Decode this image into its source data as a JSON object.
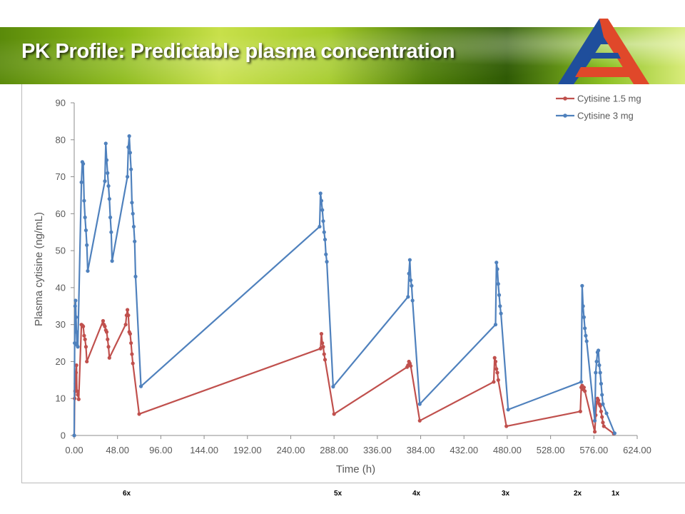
{
  "slide": {
    "title": "PK Profile: Predictable plasma concentration"
  },
  "logo": {
    "icon": "triangle-a-logo-icon",
    "colors": [
      "#1f4e9c",
      "#e0482a"
    ]
  },
  "dose_labels": [
    "6x",
    "5x",
    "4x",
    "3x",
    "2x",
    "1x"
  ],
  "chart_data": {
    "type": "line",
    "xlabel": "Time (h)",
    "ylabel": "Plasma cytisine (ng/mL)",
    "xlim": [
      0,
      624
    ],
    "ylim": [
      0,
      90
    ],
    "xticks": [
      0,
      48,
      96,
      144,
      192,
      240,
      288,
      336,
      384,
      432,
      480,
      528,
      576,
      624
    ],
    "xtick_labels": [
      "0.00",
      "48.00",
      "96.00",
      "144.00",
      "192.00",
      "240.00",
      "288.00",
      "336.00",
      "384.00",
      "432.00",
      "480.00",
      "528.00",
      "576.00",
      "624.00"
    ],
    "yticks": [
      0,
      10,
      20,
      30,
      40,
      50,
      60,
      70,
      80,
      90
    ],
    "grid": false,
    "legend_position": "top-right",
    "series": [
      {
        "name": "Cytisine 1.5 mg",
        "color": "#c0504d",
        "points": [
          [
            0,
            0
          ],
          [
            0.5,
            10
          ],
          [
            1,
            12
          ],
          [
            1.5,
            14
          ],
          [
            2,
            17
          ],
          [
            2.5,
            19
          ],
          [
            3,
            12
          ],
          [
            4,
            11
          ],
          [
            5,
            9.8
          ],
          [
            8,
            30
          ],
          [
            9,
            29.8
          ],
          [
            10,
            29.5
          ],
          [
            11,
            27
          ],
          [
            12,
            26
          ],
          [
            13,
            24
          ],
          [
            14,
            20
          ],
          [
            32,
            31
          ],
          [
            33,
            30
          ],
          [
            34,
            29.5
          ],
          [
            35,
            28.5
          ],
          [
            36,
            28
          ],
          [
            37,
            26
          ],
          [
            38,
            24
          ],
          [
            39,
            21
          ],
          [
            57,
            30
          ],
          [
            58,
            32.5
          ],
          [
            59,
            34
          ],
          [
            60,
            32.5
          ],
          [
            61,
            28
          ],
          [
            62,
            27.5
          ],
          [
            63,
            25
          ],
          [
            64,
            22
          ],
          [
            65,
            19.5
          ],
          [
            72,
            5.8
          ],
          [
            273,
            23.5
          ],
          [
            274,
            27.5
          ],
          [
            275,
            25
          ],
          [
            276,
            24
          ],
          [
            277,
            22
          ],
          [
            278,
            20.5
          ],
          [
            288,
            5.8
          ],
          [
            369,
            18.5
          ],
          [
            370,
            19
          ],
          [
            371,
            20
          ],
          [
            372,
            19.5
          ],
          [
            373,
            18.8
          ],
          [
            383,
            4
          ],
          [
            465,
            14.5
          ],
          [
            466,
            21
          ],
          [
            467,
            20
          ],
          [
            468,
            18
          ],
          [
            469,
            17
          ],
          [
            470,
            15
          ],
          [
            479,
            2.5
          ],
          [
            561,
            6.5
          ],
          [
            562,
            13
          ],
          [
            563,
            13.5
          ],
          [
            564,
            12.5
          ],
          [
            565,
            13
          ],
          [
            566,
            12
          ],
          [
            577,
            1
          ],
          [
            578,
            5.5
          ],
          [
            579,
            9
          ],
          [
            580,
            10
          ],
          [
            581,
            9.5
          ],
          [
            582,
            8.5
          ],
          [
            583,
            8
          ],
          [
            584,
            6.5
          ],
          [
            585,
            5
          ],
          [
            586,
            3.5
          ],
          [
            587,
            2.5
          ],
          [
            598,
            0.5
          ]
        ]
      },
      {
        "name": "Cytisine 3 mg",
        "color": "#4f81bd",
        "points": [
          [
            0,
            0
          ],
          [
            0.5,
            25
          ],
          [
            1,
            35
          ],
          [
            1.5,
            36.5
          ],
          [
            2,
            32
          ],
          [
            2.5,
            28
          ],
          [
            3,
            24.5
          ],
          [
            4,
            24
          ],
          [
            8,
            68.5
          ],
          [
            9,
            74
          ],
          [
            10,
            73.5
          ],
          [
            11,
            63.5
          ],
          [
            12,
            59
          ],
          [
            13,
            55.5
          ],
          [
            14,
            51.5
          ],
          [
            15,
            44.5
          ],
          [
            34,
            68.8
          ],
          [
            35,
            79
          ],
          [
            36,
            74.5
          ],
          [
            37,
            71
          ],
          [
            38,
            67.5
          ],
          [
            39,
            64
          ],
          [
            40,
            59
          ],
          [
            41,
            55
          ],
          [
            42,
            47.2
          ],
          [
            59,
            70
          ],
          [
            60,
            78
          ],
          [
            61,
            81
          ],
          [
            62,
            76.5
          ],
          [
            63,
            72
          ],
          [
            64,
            63
          ],
          [
            65,
            60
          ],
          [
            66,
            56.5
          ],
          [
            67,
            52.5
          ],
          [
            68,
            43
          ],
          [
            74,
            13.3
          ],
          [
            272,
            56.5
          ],
          [
            273,
            65.5
          ],
          [
            274,
            63.5
          ],
          [
            275,
            61
          ],
          [
            276,
            58
          ],
          [
            277,
            55
          ],
          [
            278,
            53
          ],
          [
            279,
            49
          ],
          [
            280,
            47
          ],
          [
            287,
            13.2
          ],
          [
            370,
            37.5
          ],
          [
            371,
            43.8
          ],
          [
            372,
            47.5
          ],
          [
            373,
            42
          ],
          [
            374,
            40.5
          ],
          [
            375,
            36.5
          ],
          [
            383,
            8.5
          ],
          [
            467,
            30
          ],
          [
            468,
            46.8
          ],
          [
            469,
            45
          ],
          [
            470,
            41
          ],
          [
            471,
            38
          ],
          [
            472,
            35
          ],
          [
            473,
            33
          ],
          [
            481,
            7
          ],
          [
            562,
            14.5
          ],
          [
            563,
            40.5
          ],
          [
            564,
            35
          ],
          [
            565,
            32
          ],
          [
            566,
            29
          ],
          [
            567,
            27
          ],
          [
            568,
            25.5
          ],
          [
            577,
            4
          ],
          [
            578,
            17
          ],
          [
            579,
            20
          ],
          [
            580,
            22.5
          ],
          [
            581,
            23
          ],
          [
            582,
            19
          ],
          [
            583,
            17
          ],
          [
            584,
            14
          ],
          [
            585,
            11
          ],
          [
            586,
            8.5
          ],
          [
            590,
            6
          ],
          [
            599,
            0.6
          ]
        ]
      }
    ]
  }
}
